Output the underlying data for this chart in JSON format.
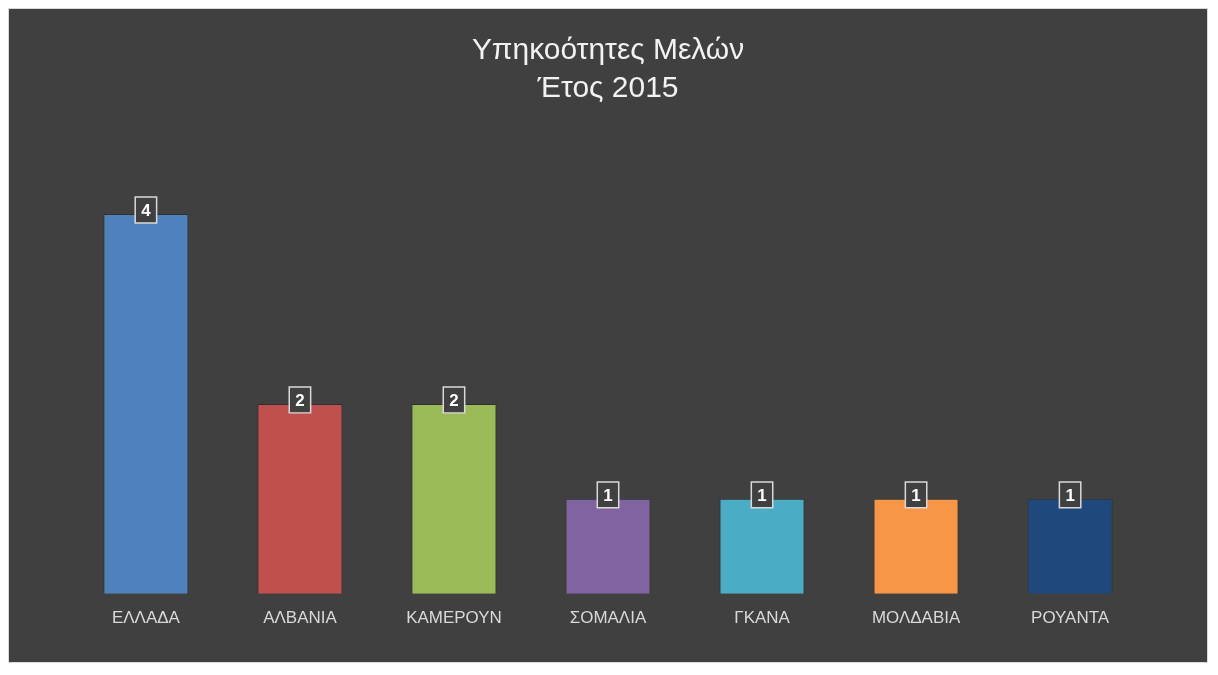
{
  "chart_data": {
    "type": "bar",
    "title": "Υπηκοότητες Μελών",
    "subtitle": "Έτος 2015",
    "categories": [
      "ΕΛΛΑΔΑ",
      "ΑΛΒΑΝΙΑ",
      "ΚΑΜΕΡΟΥΝ",
      "ΣΟΜΑΛΙΑ",
      "ΓΚΑΝΑ",
      "ΜΟΛΔΑΒΙΑ",
      "ΡΟΥΑΝΤΑ"
    ],
    "values": [
      4,
      2,
      2,
      1,
      1,
      1,
      1
    ],
    "colors": [
      "#4f81bd",
      "#c0504d",
      "#9bbb59",
      "#8064a2",
      "#4bacc6",
      "#f79646",
      "#1f497d"
    ],
    "data_labels": true,
    "grid": false,
    "legend": false
  }
}
